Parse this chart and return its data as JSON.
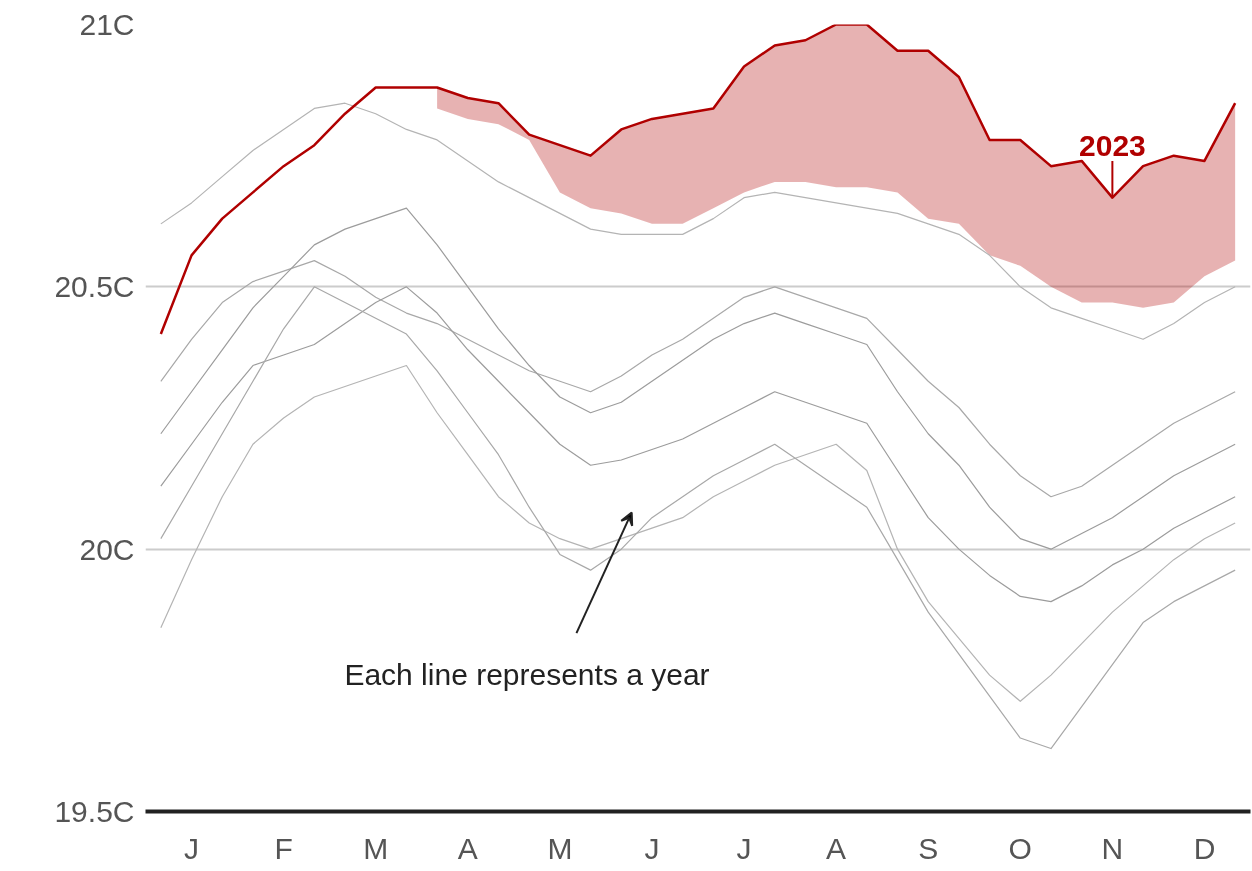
{
  "chart_data": {
    "type": "line",
    "categories": [
      null,
      "J",
      null,
      null,
      "F",
      null,
      null,
      "M",
      null,
      null,
      "A",
      null,
      null,
      "M",
      null,
      null,
      "J",
      null,
      null,
      "J",
      null,
      null,
      "A",
      null,
      null,
      "S",
      null,
      null,
      "O",
      null,
      null,
      "N",
      null,
      null,
      "D",
      null
    ],
    "ylim": [
      19.5,
      21
    ],
    "yticks": [
      {
        "value": 19.5,
        "label": "19.5C"
      },
      {
        "value": 20,
        "label": "20C"
      },
      {
        "value": 20.5,
        "label": "20.5C"
      },
      {
        "value": 21,
        "label": "21C"
      }
    ],
    "grid": "y",
    "line_style": "solid",
    "marker": "none",
    "series": [
      {
        "color": "#b4b4b4",
        "values": [
          20.62,
          20.66,
          20.71,
          20.76,
          20.8,
          20.84,
          20.85,
          20.83,
          20.8,
          20.78,
          20.74,
          20.7,
          20.67,
          20.64,
          20.61,
          20.6,
          20.6,
          20.6,
          20.63,
          20.67,
          20.68,
          20.67,
          20.66,
          20.65,
          20.64,
          20.62,
          20.6,
          20.56,
          20.5,
          20.46,
          20.44,
          20.42,
          20.4,
          20.43,
          20.47,
          20.5
        ]
      },
      {
        "color": "#a8a8a8",
        "values": [
          20.32,
          20.4,
          20.47,
          20.51,
          20.53,
          20.55,
          20.52,
          20.48,
          20.45,
          20.43,
          20.4,
          20.37,
          20.34,
          20.32,
          20.3,
          20.33,
          20.37,
          20.4,
          20.44,
          20.48,
          20.5,
          20.48,
          20.46,
          20.44,
          20.38,
          20.32,
          20.27,
          20.2,
          20.14,
          20.1,
          20.12,
          20.16,
          20.2,
          20.24,
          20.27,
          20.3
        ]
      },
      {
        "color": "#9c9c9c",
        "values": [
          20.12,
          20.2,
          20.28,
          20.35,
          20.37,
          20.39,
          20.43,
          20.47,
          20.5,
          20.45,
          20.38,
          20.32,
          20.26,
          20.2,
          20.16,
          20.17,
          20.19,
          20.21,
          20.24,
          20.27,
          20.3,
          20.28,
          20.26,
          20.24,
          20.15,
          20.06,
          20.0,
          19.95,
          19.91,
          19.9,
          19.93,
          19.97,
          20.0,
          20.04,
          20.07,
          20.1
        ]
      },
      {
        "color": "#b4b4b4",
        "values": [
          19.85,
          19.98,
          20.1,
          20.2,
          20.25,
          20.29,
          20.31,
          20.33,
          20.35,
          20.26,
          20.18,
          20.1,
          20.05,
          20.02,
          20.0,
          20.02,
          20.04,
          20.06,
          20.1,
          20.13,
          20.16,
          20.18,
          20.2,
          20.15,
          20.0,
          19.9,
          19.83,
          19.76,
          19.71,
          19.76,
          19.82,
          19.88,
          19.93,
          19.98,
          20.02,
          20.05
        ]
      },
      {
        "color": "#a8a8a8",
        "values": [
          20.02,
          20.12,
          20.22,
          20.32,
          20.42,
          20.5,
          20.47,
          20.44,
          20.41,
          20.34,
          20.26,
          20.18,
          20.08,
          19.99,
          19.96,
          20.0,
          20.06,
          20.1,
          20.14,
          20.17,
          20.2,
          20.16,
          20.12,
          20.08,
          19.98,
          19.88,
          19.8,
          19.72,
          19.64,
          19.62,
          19.7,
          19.78,
          19.86,
          19.9,
          19.93,
          19.96
        ]
      },
      {
        "color": "#9c9c9c",
        "values": [
          20.22,
          20.3,
          20.38,
          20.46,
          20.52,
          20.58,
          20.61,
          20.63,
          20.65,
          20.58,
          20.5,
          20.42,
          20.35,
          20.29,
          20.26,
          20.28,
          20.32,
          20.36,
          20.4,
          20.43,
          20.45,
          20.43,
          20.41,
          20.39,
          20.3,
          20.22,
          20.16,
          20.08,
          20.02,
          20.0,
          20.03,
          20.06,
          20.1,
          20.14,
          20.17,
          20.2
        ]
      },
      {
        "color": "#b00000",
        "values": [
          20.41,
          20.56,
          20.63,
          20.68,
          20.73,
          20.77,
          20.83,
          20.88,
          20.88,
          20.88,
          20.86,
          20.85,
          20.79,
          20.77,
          20.75,
          20.8,
          20.82,
          20.83,
          20.84,
          20.92,
          20.96,
          20.97,
          21.0,
          21.0,
          20.95,
          20.95,
          20.9,
          20.78,
          20.78,
          20.73,
          20.74,
          20.67,
          20.73,
          20.75,
          20.74,
          20.85
        ],
        "lower": [
          null,
          null,
          null,
          null,
          null,
          null,
          null,
          null,
          null,
          20.84,
          20.82,
          20.81,
          20.78,
          20.68,
          20.65,
          20.64,
          20.62,
          20.62,
          20.65,
          20.68,
          20.7,
          20.7,
          20.69,
          20.69,
          20.68,
          20.63,
          20.62,
          20.56,
          20.54,
          20.5,
          20.47,
          20.47,
          20.46,
          20.47,
          20.52,
          20.55
        ],
        "upper": [
          null,
          null,
          null,
          null,
          null,
          null,
          null,
          null,
          null,
          20.88,
          20.86,
          20.85,
          20.79,
          20.77,
          20.75,
          20.8,
          20.82,
          20.83,
          20.84,
          20.92,
          20.96,
          20.97,
          21.0,
          21.0,
          20.95,
          20.95,
          20.9,
          20.78,
          20.78,
          20.73,
          20.74,
          20.67,
          20.73,
          20.75,
          20.74,
          20.85
        ]
      }
    ],
    "annotations": [
      {
        "text": "2023",
        "x": "N",
        "y": 20.67
      },
      "Each line represents a year"
    ]
  }
}
